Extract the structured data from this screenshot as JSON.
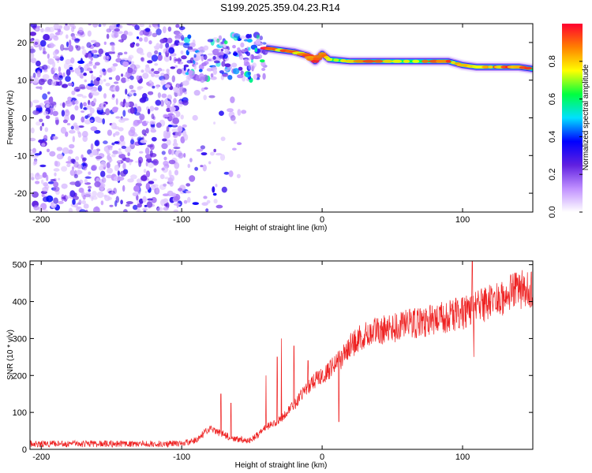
{
  "title": "S199.2025.359.04.23.R14",
  "chart_data": [
    {
      "type": "heatmap",
      "name": "spectrogram",
      "xlabel": "Height of straight line (km)",
      "ylabel": "Frequency (Hz)",
      "xlim": [
        -208,
        150
      ],
      "ylim": [
        -25,
        25
      ],
      "xticks": [
        -200,
        -100,
        0,
        100
      ],
      "yticks": [
        -20,
        -10,
        0,
        10,
        20
      ],
      "colorbar": {
        "label": "Normalized spectral amplitude",
        "range": [
          0.0,
          1.0
        ],
        "ticks": [
          0.0,
          0.2,
          0.4,
          0.6,
          0.8
        ],
        "tick_labels": [
          "0.0",
          "0.2",
          "0.4",
          "0.6",
          "0.8"
        ],
        "colors": [
          "#ffffff",
          "#c090ff",
          "#6020e0",
          "#0000ff",
          "#00e0ff",
          "#00ff40",
          "#ffff00",
          "#ff8000",
          "#ff0030"
        ]
      },
      "carrier_line": [
        {
          "x": -40,
          "y": 18.5
        },
        {
          "x": -30,
          "y": 18.0
        },
        {
          "x": -20,
          "y": 17.5
        },
        {
          "x": -10,
          "y": 16.5
        },
        {
          "x": -5,
          "y": 15.0
        },
        {
          "x": 0,
          "y": 17.0
        },
        {
          "x": 5,
          "y": 15.5
        },
        {
          "x": 20,
          "y": 15.0
        },
        {
          "x": 40,
          "y": 15.0
        },
        {
          "x": 60,
          "y": 15.0
        },
        {
          "x": 80,
          "y": 15.0
        },
        {
          "x": 90,
          "y": 15.0
        },
        {
          "x": 100,
          "y": 14.0
        },
        {
          "x": 110,
          "y": 13.5
        },
        {
          "x": 120,
          "y": 13.5
        },
        {
          "x": 130,
          "y": 13.5
        },
        {
          "x": 140,
          "y": 13.5
        },
        {
          "x": 150,
          "y": 13.0
        }
      ],
      "noise_regions": [
        {
          "x_from": -208,
          "x_to": -97,
          "y_from": -25,
          "y_to": 25,
          "density": 0.5
        },
        {
          "x_from": -97,
          "x_to": -55,
          "y_from": -25,
          "y_to": 8,
          "density": 0.1
        },
        {
          "x_from": -97,
          "x_to": -40,
          "y_from": 10,
          "y_to": 22,
          "density": 0.8
        }
      ]
    },
    {
      "type": "line",
      "name": "snr",
      "xlabel": "Height of straight line (km)",
      "ylabel": "SNR (10 * v/v)",
      "xlim": [
        -208,
        150
      ],
      "ylim": [
        0,
        510
      ],
      "xticks": [
        -200,
        -100,
        0,
        100
      ],
      "yticks": [
        0,
        100,
        200,
        300,
        400,
        500
      ],
      "color": "#ee2222",
      "envelope": [
        {
          "x": -208,
          "y": 15
        },
        {
          "x": -150,
          "y": 15
        },
        {
          "x": -100,
          "y": 15
        },
        {
          "x": -90,
          "y": 25
        },
        {
          "x": -80,
          "y": 55
        },
        {
          "x": -70,
          "y": 40
        },
        {
          "x": -60,
          "y": 25
        },
        {
          "x": -50,
          "y": 25
        },
        {
          "x": -40,
          "y": 60
        },
        {
          "x": -30,
          "y": 80
        },
        {
          "x": -20,
          "y": 120
        },
        {
          "x": -10,
          "y": 170
        },
        {
          "x": 0,
          "y": 200
        },
        {
          "x": 10,
          "y": 230
        },
        {
          "x": 20,
          "y": 280
        },
        {
          "x": 30,
          "y": 310
        },
        {
          "x": 50,
          "y": 330
        },
        {
          "x": 80,
          "y": 350
        },
        {
          "x": 100,
          "y": 370
        },
        {
          "x": 120,
          "y": 400
        },
        {
          "x": 140,
          "y": 430
        },
        {
          "x": 150,
          "y": 440
        }
      ],
      "spikes": [
        {
          "x": -72,
          "y": 150
        },
        {
          "x": -65,
          "y": 125
        },
        {
          "x": -40,
          "y": 200
        },
        {
          "x": -32,
          "y": 250
        },
        {
          "x": -29,
          "y": 300
        },
        {
          "x": -20,
          "y": 280
        },
        {
          "x": -10,
          "y": 240
        },
        {
          "x": 12,
          "y": 75
        },
        {
          "x": 15,
          "y": 260
        },
        {
          "x": 107,
          "y": 510
        },
        {
          "x": 108,
          "y": 250
        }
      ]
    }
  ]
}
